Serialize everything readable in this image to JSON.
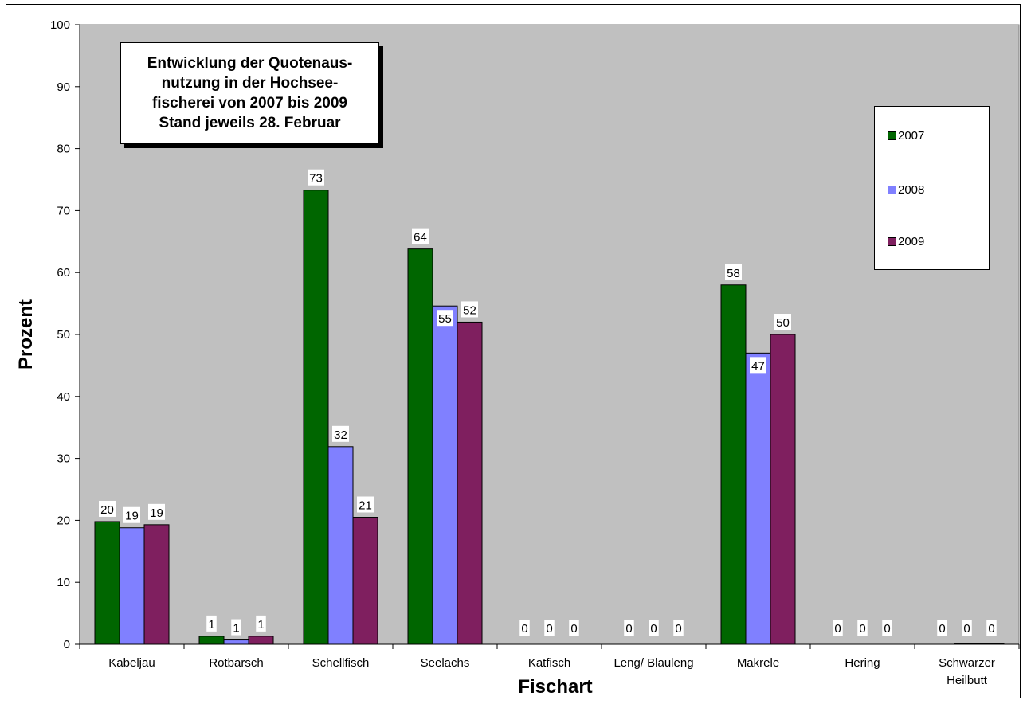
{
  "chart_data": {
    "type": "bar",
    "title_lines": [
      "Entwicklung der Quotenaus-",
      "nutzung in der Hochsee-",
      "fischerei von 2007 bis 2009",
      "Stand jeweils 28. Februar"
    ],
    "xlabel": "Fischart",
    "ylabel": "Prozent",
    "ylim": [
      0,
      100
    ],
    "yticks": [
      "0",
      "10",
      "20",
      "30",
      "40",
      "50",
      "60",
      "70",
      "80",
      "90",
      "100"
    ],
    "categories": [
      [
        "Kabeljau"
      ],
      [
        "Rotbarsch"
      ],
      [
        "Schellfisch"
      ],
      [
        "Seelachs"
      ],
      [
        "Katfisch"
      ],
      [
        "Leng/ Blauleng"
      ],
      [
        "Makrele"
      ],
      [
        "Hering"
      ],
      [
        "Schwarzer",
        "Heilbutt"
      ]
    ],
    "series": [
      {
        "name": "2007",
        "color": "#006600",
        "values": [
          19.8,
          1.3,
          73.3,
          63.8,
          0,
          0,
          58.0,
          0,
          0
        ],
        "labels": [
          "20",
          "1",
          "73",
          "64",
          "0",
          "0",
          "58",
          "0",
          "0"
        ]
      },
      {
        "name": "2008",
        "color": "#8080FF",
        "values": [
          18.8,
          0.7,
          31.9,
          54.6,
          0,
          0,
          47.0,
          0,
          0.1
        ],
        "labels": [
          "19",
          "1",
          "32",
          "55",
          "0",
          "0",
          "47",
          "0",
          "0"
        ]
      },
      {
        "name": "2009",
        "color": "#7F1F5F",
        "values": [
          19.3,
          1.3,
          20.5,
          52.0,
          0,
          0,
          50.0,
          0,
          0.1
        ],
        "labels": [
          "19",
          "1",
          "21",
          "52",
          "0",
          "0",
          "50",
          "0",
          "0"
        ]
      }
    ],
    "plot_background": "#C0C0C0",
    "grid": false,
    "legend_position": "right"
  }
}
